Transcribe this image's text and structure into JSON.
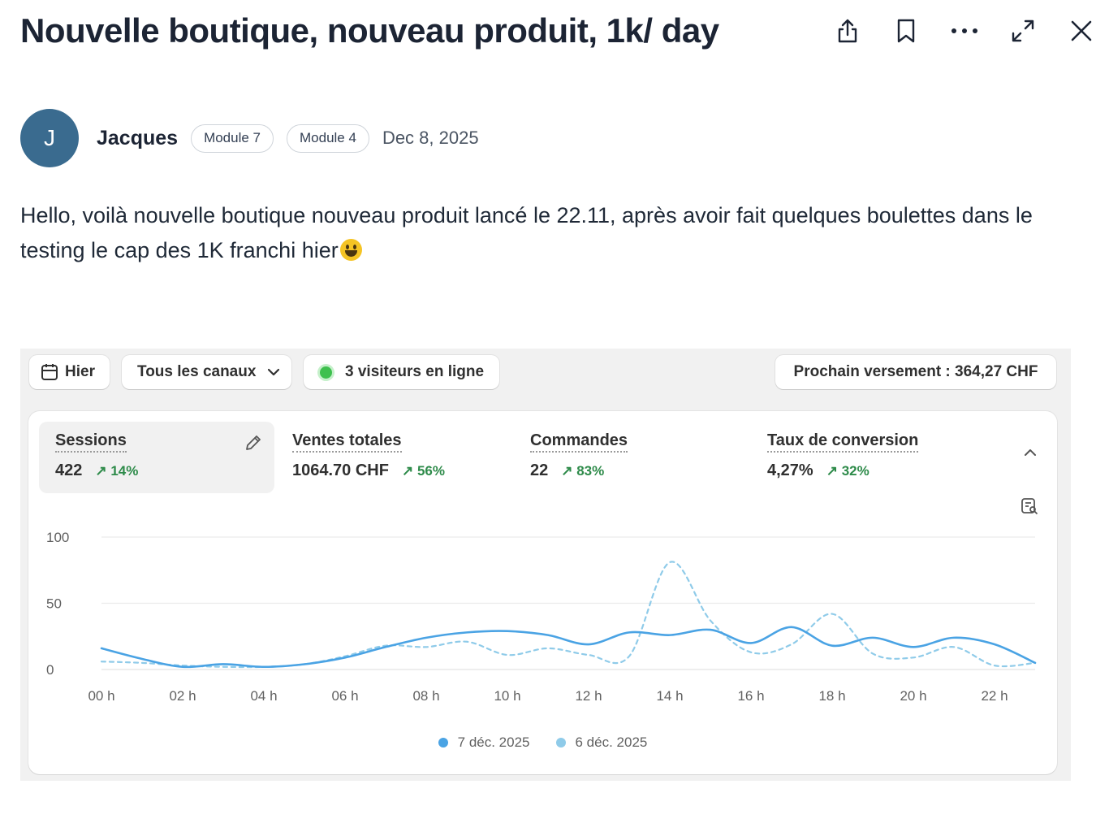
{
  "post": {
    "title": "Nouvelle boutique, nouveau produit, 1k/ day",
    "author": {
      "initial": "J",
      "name": "Jacques",
      "avatar_color": "#3a6b8f"
    },
    "tags": [
      "Module 7",
      "Module 4"
    ],
    "date": "Dec 8, 2025",
    "body": "Hello, voilà nouvelle boutique nouveau produit lancé le 22.11, après avoir fait quelques boulettes dans le testing le cap des 1K franchi hier",
    "emoji": "grinning-face"
  },
  "toolbar_icons": [
    "share-icon",
    "bookmark-icon",
    "more-icon",
    "expand-icon",
    "close-icon"
  ],
  "dashboard": {
    "date_button": "Hier",
    "channels_button": "Tous les canaux",
    "visitors_text": "3 visiteurs en ligne",
    "payout_text": "Prochain versement : 364,27 CHF",
    "metrics": [
      {
        "label": "Sessions",
        "value": "422",
        "change": "14%"
      },
      {
        "label": "Ventes totales",
        "value": "1064.70 CHF",
        "change": "56%"
      },
      {
        "label": "Commandes",
        "value": "22",
        "change": "83%"
      },
      {
        "label": "Taux de conversion",
        "value": "4,27%",
        "change": "32%"
      }
    ],
    "colors": {
      "positive": "#2e8b4a",
      "current": "#4aa3e4",
      "previous": "#8fcbe9",
      "online": "#3ec04e"
    }
  },
  "chart_data": {
    "type": "line",
    "x": [
      "00 h",
      "01 h",
      "02 h",
      "03 h",
      "04 h",
      "05 h",
      "06 h",
      "07 h",
      "08 h",
      "09 h",
      "10 h",
      "11 h",
      "12 h",
      "13 h",
      "14 h",
      "15 h",
      "16 h",
      "17 h",
      "18 h",
      "19 h",
      "20 h",
      "21 h",
      "22 h",
      "23 h"
    ],
    "x_tick_labels": [
      "00 h",
      "02 h",
      "04 h",
      "06 h",
      "08 h",
      "10 h",
      "12 h",
      "14 h",
      "16 h",
      "18 h",
      "20 h",
      "22 h"
    ],
    "series": [
      {
        "name": "7 déc. 2025",
        "style": "solid",
        "values": [
          16,
          8,
          2,
          4,
          2,
          4,
          9,
          17,
          24,
          28,
          29,
          26,
          19,
          28,
          26,
          30,
          20,
          32,
          18,
          24,
          17,
          24,
          19,
          5
        ]
      },
      {
        "name": "6 déc. 2025",
        "style": "dashed",
        "values": [
          6,
          5,
          3,
          2,
          2,
          4,
          10,
          18,
          17,
          21,
          11,
          16,
          11,
          10,
          81,
          37,
          13,
          19,
          42,
          12,
          9,
          17,
          3,
          5
        ]
      }
    ],
    "ylim": [
      0,
      100
    ],
    "y_ticks": [
      0,
      50,
      100
    ],
    "grid": true,
    "legend_position": "bottom"
  }
}
